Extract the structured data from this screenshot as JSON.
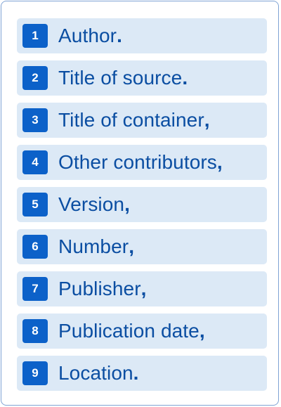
{
  "items": [
    {
      "number": "1",
      "label": "Author",
      "punct": "."
    },
    {
      "number": "2",
      "label": "Title of source",
      "punct": "."
    },
    {
      "number": "3",
      "label": "Title of container",
      "punct": ","
    },
    {
      "number": "4",
      "label": "Other contributors",
      "punct": ","
    },
    {
      "number": "5",
      "label": "Version",
      "punct": ","
    },
    {
      "number": "6",
      "label": "Number",
      "punct": ","
    },
    {
      "number": "7",
      "label": "Publisher",
      "punct": ","
    },
    {
      "number": "8",
      "label": "Publication date",
      "punct": ","
    },
    {
      "number": "9",
      "label": "Location",
      "punct": "."
    }
  ],
  "colors": {
    "badge": "#0c61c9",
    "row_background": "#dce9f6",
    "text": "#0b4ea2",
    "border": "#7fa3d4"
  }
}
